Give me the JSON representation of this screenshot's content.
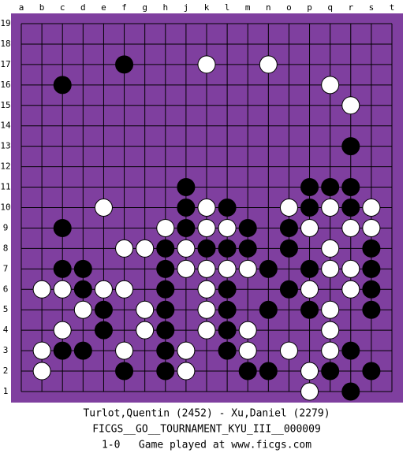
{
  "board": {
    "columns": [
      "a",
      "b",
      "c",
      "d",
      "e",
      "f",
      "g",
      "h",
      "j",
      "k",
      "l",
      "m",
      "n",
      "o",
      "p",
      "q",
      "r",
      "s",
      "t"
    ],
    "rows": [
      19,
      18,
      17,
      16,
      15,
      14,
      13,
      12,
      11,
      10,
      9,
      8,
      7,
      6,
      5,
      4,
      3,
      2,
      1
    ],
    "stones": {
      "black": [
        [
          "f",
          17
        ],
        [
          "c",
          16
        ],
        [
          "r",
          13
        ],
        [
          "j",
          11
        ],
        [
          "p",
          11
        ],
        [
          "q",
          11
        ],
        [
          "r",
          11
        ],
        [
          "j",
          10
        ],
        [
          "l",
          10
        ],
        [
          "p",
          10
        ],
        [
          "r",
          10
        ],
        [
          "c",
          9
        ],
        [
          "j",
          9
        ],
        [
          "m",
          9
        ],
        [
          "o",
          9
        ],
        [
          "h",
          8
        ],
        [
          "k",
          8
        ],
        [
          "l",
          8
        ],
        [
          "m",
          8
        ],
        [
          "o",
          8
        ],
        [
          "s",
          8
        ],
        [
          "c",
          7
        ],
        [
          "d",
          7
        ],
        [
          "h",
          7
        ],
        [
          "n",
          7
        ],
        [
          "p",
          7
        ],
        [
          "s",
          7
        ],
        [
          "d",
          6
        ],
        [
          "h",
          6
        ],
        [
          "l",
          6
        ],
        [
          "o",
          6
        ],
        [
          "s",
          6
        ],
        [
          "e",
          5
        ],
        [
          "h",
          5
        ],
        [
          "l",
          5
        ],
        [
          "n",
          5
        ],
        [
          "p",
          5
        ],
        [
          "s",
          5
        ],
        [
          "e",
          4
        ],
        [
          "h",
          4
        ],
        [
          "l",
          4
        ],
        [
          "c",
          3
        ],
        [
          "d",
          3
        ],
        [
          "h",
          3
        ],
        [
          "l",
          3
        ],
        [
          "r",
          3
        ],
        [
          "f",
          2
        ],
        [
          "h",
          2
        ],
        [
          "m",
          2
        ],
        [
          "n",
          2
        ],
        [
          "q",
          2
        ],
        [
          "s",
          2
        ],
        [
          "r",
          1
        ]
      ],
      "white": [
        [
          "k",
          17
        ],
        [
          "n",
          17
        ],
        [
          "q",
          16
        ],
        [
          "r",
          15
        ],
        [
          "e",
          10
        ],
        [
          "k",
          10
        ],
        [
          "o",
          10
        ],
        [
          "q",
          10
        ],
        [
          "s",
          10
        ],
        [
          "h",
          9
        ],
        [
          "k",
          9
        ],
        [
          "l",
          9
        ],
        [
          "p",
          9
        ],
        [
          "r",
          9
        ],
        [
          "s",
          9
        ],
        [
          "f",
          8
        ],
        [
          "g",
          8
        ],
        [
          "j",
          8
        ],
        [
          "q",
          8
        ],
        [
          "j",
          7
        ],
        [
          "k",
          7
        ],
        [
          "l",
          7
        ],
        [
          "m",
          7
        ],
        [
          "q",
          7
        ],
        [
          "r",
          7
        ],
        [
          "b",
          6
        ],
        [
          "c",
          6
        ],
        [
          "e",
          6
        ],
        [
          "f",
          6
        ],
        [
          "k",
          6
        ],
        [
          "p",
          6
        ],
        [
          "r",
          6
        ],
        [
          "d",
          5
        ],
        [
          "g",
          5
        ],
        [
          "k",
          5
        ],
        [
          "q",
          5
        ],
        [
          "c",
          4
        ],
        [
          "g",
          4
        ],
        [
          "k",
          4
        ],
        [
          "m",
          4
        ],
        [
          "q",
          4
        ],
        [
          "b",
          3
        ],
        [
          "f",
          3
        ],
        [
          "j",
          3
        ],
        [
          "m",
          3
        ],
        [
          "o",
          3
        ],
        [
          "q",
          3
        ],
        [
          "b",
          2
        ],
        [
          "j",
          2
        ],
        [
          "p",
          2
        ],
        [
          "p",
          1
        ]
      ]
    }
  },
  "footer": {
    "players": "Turlot,Quentin (2452) - Xu,Daniel (2279)",
    "event": "FICGS__GO__TOURNAMENT_KYU_III__000009",
    "result": "1-0   Game played at www.ficgs.com"
  }
}
